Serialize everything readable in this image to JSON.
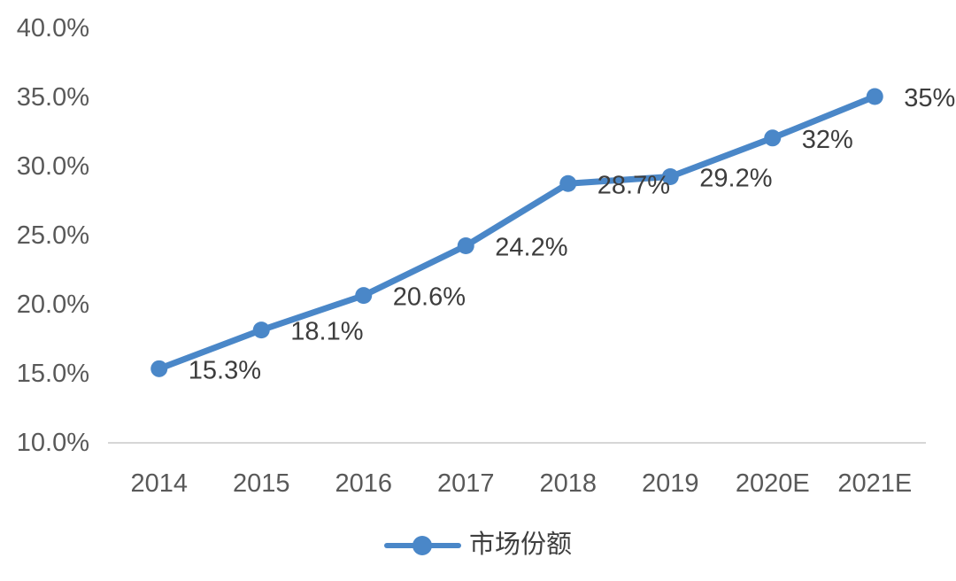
{
  "chart": {
    "title": "",
    "colors": {
      "line": "#4a87c8",
      "axis_line": "#d6d6d6",
      "tick_label": "#595959",
      "data_label": "#3d3d3d",
      "legend_label": "#3f3f3f",
      "background": "#ffffff"
    }
  },
  "chart_data": {
    "type": "line",
    "categories": [
      "2014",
      "2015",
      "2016",
      "2017",
      "2018",
      "2019",
      "2020E",
      "2021E"
    ],
    "series": [
      {
        "name": "市场份额",
        "values": [
          15.3,
          18.1,
          20.6,
          24.2,
          28.7,
          29.2,
          32,
          35
        ],
        "data_labels": [
          "15.3%",
          "18.1%",
          "20.6%",
          "24.2%",
          "28.7%",
          "29.2%",
          "32%",
          "35%"
        ]
      }
    ],
    "title": "",
    "xlabel": "",
    "ylabel": "",
    "ylim": [
      10,
      40
    ],
    "ytick_values": [
      10,
      15,
      20,
      25,
      30,
      35,
      40
    ],
    "ytick_labels": [
      "10.0%",
      "15.0%",
      "20.0%",
      "25.0%",
      "30.0%",
      "35.0%",
      "40.0%"
    ],
    "grid": false,
    "legend_position": "bottom",
    "marker": "circle"
  }
}
